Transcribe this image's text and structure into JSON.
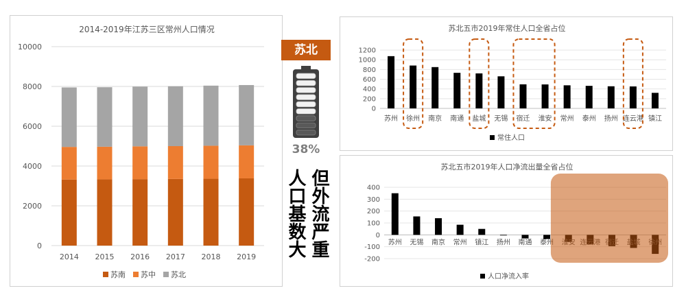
{
  "center": {
    "label": "苏北",
    "percent": "38%",
    "col1": "人口基数大",
    "col2": "但外流严重",
    "battery_level": 0.38
  },
  "chart_data": [
    {
      "type": "bar",
      "stacked": true,
      "title": "2014-2019年江苏三区常州人口情况",
      "categories": [
        "2014",
        "2015",
        "2016",
        "2017",
        "2018",
        "2019"
      ],
      "series": [
        {
          "name": "苏南",
          "color": "#C55A11",
          "values": [
            3320,
            3330,
            3340,
            3350,
            3360,
            3380
          ]
        },
        {
          "name": "苏中",
          "color": "#ED7D31",
          "values": [
            1640,
            1640,
            1650,
            1650,
            1660,
            1660
          ]
        },
        {
          "name": "苏北",
          "color": "#A5A5A5",
          "values": [
            2990,
            2990,
            3000,
            3010,
            3020,
            3030
          ]
        }
      ],
      "ylim": [
        0,
        10000
      ],
      "yticks": [
        "0",
        "2000",
        "4000",
        "6000",
        "8000",
        "10000"
      ],
      "grid": true,
      "legend": "bottom"
    },
    {
      "type": "bar",
      "title": "苏北五市2019年常住人口全省占位",
      "categories": [
        "苏州",
        "徐州",
        "南京",
        "南通",
        "盐城",
        "无锡",
        "宿迁",
        "淮安",
        "常州",
        "泰州",
        "扬州",
        "连云港",
        "镇江"
      ],
      "series": [
        {
          "name": "常住人口",
          "color": "#000000",
          "values": [
            1075,
            882,
            850,
            732,
            720,
            660,
            495,
            493,
            475,
            464,
            455,
            452,
            320
          ]
        }
      ],
      "highlighted": [
        "徐州",
        "盐城",
        "宿迁",
        "淮安",
        "连云港"
      ],
      "ylim": [
        0,
        1200
      ],
      "yticks": [
        "0",
        "200",
        "400",
        "600",
        "800",
        "1000",
        "1200"
      ],
      "grid": true,
      "legend": "bottom"
    },
    {
      "type": "bar",
      "title": "苏北五市2019年人口净流出量全省占位",
      "categories": [
        "苏州",
        "无锡",
        "南京",
        "常州",
        "镇江",
        "扬州",
        "南通",
        "泰州",
        "淮安",
        "连云港",
        "宿迁",
        "盐城",
        "徐州"
      ],
      "series": [
        {
          "name": "人口净流入率",
          "color": "#000000",
          "values": [
            350,
            155,
            140,
            85,
            50,
            -5,
            -30,
            -35,
            -60,
            -80,
            -95,
            -110,
            -160
          ]
        }
      ],
      "highlighted": [
        "淮安",
        "连云港",
        "宿迁",
        "盐城",
        "徐州"
      ],
      "ylim": [
        -200,
        400
      ],
      "yticks": [
        "-200",
        "-100",
        "0",
        "100",
        "200",
        "300",
        "400"
      ],
      "grid": true,
      "legend": "bottom"
    }
  ]
}
